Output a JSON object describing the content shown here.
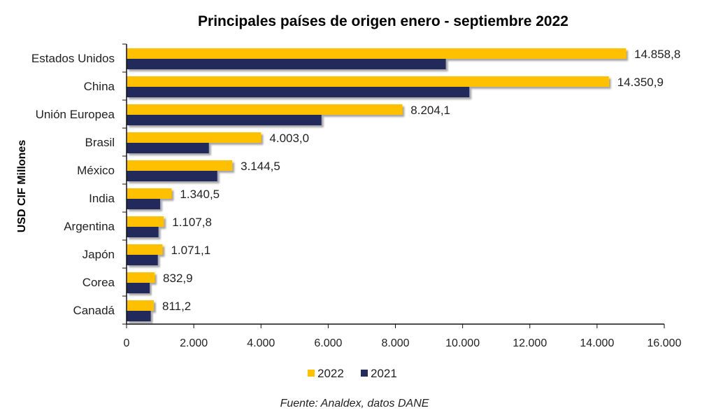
{
  "chart_data": {
    "type": "bar",
    "orientation": "horizontal",
    "title": "Principales países de origen enero - septiembre 2022",
    "ylabel": "USD CIF Millones",
    "xlabel": "",
    "categories": [
      "Estados Unidos",
      "China",
      "Unión Europea",
      "Brasil",
      "México",
      "India",
      "Argentina",
      "Japón",
      "Corea",
      "Canadá"
    ],
    "series": [
      {
        "name": "2022",
        "color": "#FFC000",
        "values": [
          14858.8,
          14350.9,
          8204.1,
          4003.0,
          3144.5,
          1340.5,
          1107.8,
          1071.1,
          832.9,
          811.2
        ],
        "labels": [
          "14.858,8",
          "14.350,9",
          "8.204,1",
          "4.003,0",
          "3.144,5",
          "1.340,5",
          "1.107,8",
          "1.071,1",
          "832,9",
          "811,2"
        ]
      },
      {
        "name": "2021",
        "color": "#232C5B",
        "values": [
          9500,
          10200,
          5800,
          2450,
          2700,
          1000,
          950,
          930,
          690,
          720
        ]
      }
    ],
    "xlim": [
      0,
      16000
    ],
    "xticks": [
      0,
      2000,
      4000,
      6000,
      8000,
      10000,
      12000,
      14000,
      16000
    ],
    "xtick_labels": [
      "0",
      "2.000",
      "4.000",
      "6.000",
      "8.000",
      "10.000",
      "12.000",
      "14.000",
      "16.000"
    ],
    "legend_position": "bottom",
    "grid": false
  },
  "source": "Fuente: Analdex, datos DANE"
}
